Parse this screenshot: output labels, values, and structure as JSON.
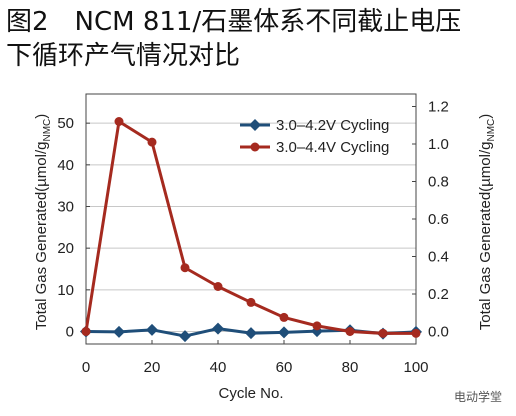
{
  "title_line1": "图2　NCM 811/石墨体系不同截止电压",
  "title_line2": "下循环产气情况对比",
  "watermark": "电动学堂",
  "chart_data": {
    "type": "line",
    "xlabel": "Cycle No.",
    "ylabel_left": "Total Gas Generated(µmol/g",
    "ylabel_left_sub": "NMC",
    "ylabel_left_end": ")",
    "ylabel_right": "Total Gas Generated(µmol/g",
    "ylabel_right_sub": "NMC",
    "ylabel_right_end": ")",
    "xlim": [
      0,
      100
    ],
    "ylim_left": [
      -3,
      57
    ],
    "ylim_right": [
      -0.0667,
      1.2667
    ],
    "x_ticks": [
      "0",
      "20",
      "40",
      "60",
      "80",
      "100"
    ],
    "y_left_ticks": [
      "0",
      "10",
      "20",
      "30",
      "40",
      "50"
    ],
    "y_right_ticks": [
      "0.0",
      "0.2",
      "0.4",
      "0.6",
      "0.8",
      "1.0",
      "1.2"
    ],
    "grid": true,
    "legend_position": "top-right",
    "series": [
      {
        "name": "3.0–4.2V Cycling",
        "axis": "left",
        "color": "#1f4e79",
        "marker": "diamond",
        "x": [
          0,
          10,
          20,
          30,
          40,
          50,
          60,
          70,
          80,
          90,
          100
        ],
        "values": [
          0,
          -0.1,
          0.4,
          -1.1,
          0.7,
          -0.4,
          -0.2,
          0.1,
          0.3,
          -0.5,
          -0.1
        ]
      },
      {
        "name": "3.0–4.4V Cycling",
        "axis": "right",
        "color": "#a52a1f",
        "marker": "circle",
        "x": [
          0,
          10,
          20,
          30,
          40,
          50,
          60,
          70,
          80,
          90,
          100
        ],
        "values": [
          0,
          1.12,
          1.01,
          0.34,
          0.24,
          0.155,
          0.075,
          0.03,
          0.0,
          -0.01,
          -0.01
        ]
      }
    ]
  }
}
